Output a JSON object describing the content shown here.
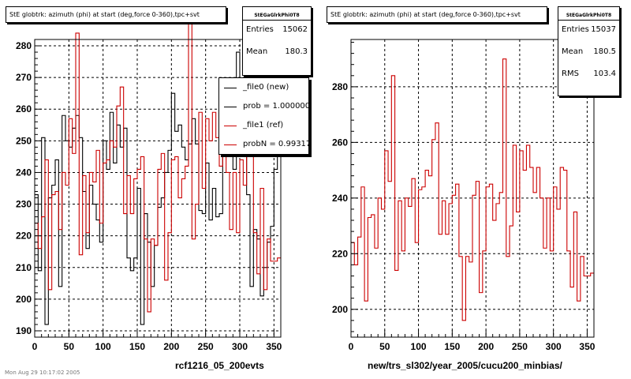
{
  "colors": {
    "file0": "#000000",
    "file1": "#cc0000",
    "frame": "#000000",
    "grid": "#000000"
  },
  "left_panel": {
    "title": "StE globtrk: azimuth (phi) at start (deg,force 0-360),tpc+svt",
    "stats": {
      "name": "StEGaGlrkPhi0T8",
      "rows": [
        {
          "label": "Entries",
          "value": "15062"
        },
        {
          "label": "Mean",
          "value": "180.3"
        }
      ]
    },
    "legend": [
      {
        "label": "_file0 (new)",
        "color": "#000000"
      },
      {
        "label": "prob = 1.000000",
        "color": "#000000"
      },
      {
        "label": "_file1 (ref)",
        "color": "#cc0000"
      },
      {
        "label": "probN = 0.993171",
        "color": "#cc0000"
      }
    ],
    "xlabel": "rcf1216_05_200evts"
  },
  "right_panel": {
    "title": "StE globtrk: azimuth (phi) at start (deg,force 0-360),tpc+svt",
    "stats": {
      "name": "StEGaGlrkPhi0T8",
      "rows": [
        {
          "label": "Entries",
          "value": "15037"
        },
        {
          "label": "Mean",
          "value": "180.5"
        },
        {
          "label": "RMS",
          "value": "103.4"
        }
      ]
    },
    "xlabel": "new/trs_sl302/year_2005/cucu200_minbias/"
  },
  "footer": "Mon Aug 29 10:17:02 2005",
  "chart_data": [
    {
      "type": "step",
      "bin_width": 5,
      "xlim": [
        0,
        360
      ],
      "ylim": [
        188,
        282
      ],
      "xticks": [
        0,
        50,
        100,
        150,
        200,
        250,
        300,
        350
      ],
      "yticks": [
        190,
        200,
        210,
        220,
        230,
        240,
        250,
        260,
        270,
        280
      ],
      "grid": true,
      "series": [
        {
          "name": "_file0 (new)",
          "color": "#000000",
          "values": [
            233,
            209,
            251,
            192,
            232,
            236,
            244,
            204,
            258,
            250,
            248,
            254,
            258,
            251,
            234,
            216,
            236,
            230,
            225,
            218,
            250,
            241,
            259,
            243,
            255,
            248,
            254,
            213,
            209,
            213,
            235,
            192,
            227,
            218,
            204,
            217,
            229,
            232,
            240,
            247,
            265,
            253,
            255,
            248,
            244,
            249,
            257,
            249,
            228,
            227,
            243,
            225,
            235,
            226,
            227,
            249,
            246,
            248,
            241,
            278,
            246,
            248,
            233,
            204,
            222,
            219,
            201,
            210,
            218,
            223,
            241,
            249
          ]
        },
        {
          "name": "_file1 (ref)",
          "color": "#cc0000",
          "values": [
            224,
            216,
            226,
            244,
            203,
            233,
            234,
            222,
            240,
            236,
            257,
            246,
            284,
            214,
            239,
            221,
            240,
            237,
            247,
            224,
            243,
            244,
            250,
            248,
            261,
            267,
            227,
            239,
            227,
            238,
            241,
            245,
            219,
            196,
            219,
            217,
            241,
            246,
            206,
            221,
            244,
            245,
            232,
            238,
            242,
            290,
            219,
            230,
            259,
            235,
            257,
            250,
            259,
            251,
            242,
            251,
            240,
            222,
            240,
            221,
            244,
            236,
            251,
            250,
            221,
            208,
            235,
            203,
            219,
            212,
            212,
            213
          ]
        }
      ]
    },
    {
      "type": "step",
      "bin_width": 5,
      "xlim": [
        0,
        360
      ],
      "ylim": [
        190,
        297
      ],
      "xticks": [
        0,
        50,
        100,
        150,
        200,
        250,
        300,
        350
      ],
      "yticks": [
        200,
        220,
        240,
        260,
        280
      ],
      "grid": true,
      "series": [
        {
          "name": "_file1 (ref)",
          "color": "#cc0000",
          "values": [
            224,
            216,
            226,
            244,
            203,
            233,
            234,
            222,
            240,
            236,
            257,
            246,
            284,
            214,
            239,
            221,
            240,
            237,
            247,
            224,
            243,
            244,
            250,
            248,
            261,
            267,
            227,
            239,
            227,
            238,
            241,
            245,
            219,
            196,
            219,
            217,
            241,
            246,
            206,
            221,
            244,
            245,
            232,
            238,
            242,
            290,
            219,
            230,
            259,
            235,
            257,
            250,
            259,
            251,
            242,
            251,
            240,
            222,
            240,
            221,
            244,
            236,
            251,
            250,
            221,
            208,
            235,
            203,
            219,
            212,
            212,
            213
          ]
        }
      ]
    }
  ]
}
